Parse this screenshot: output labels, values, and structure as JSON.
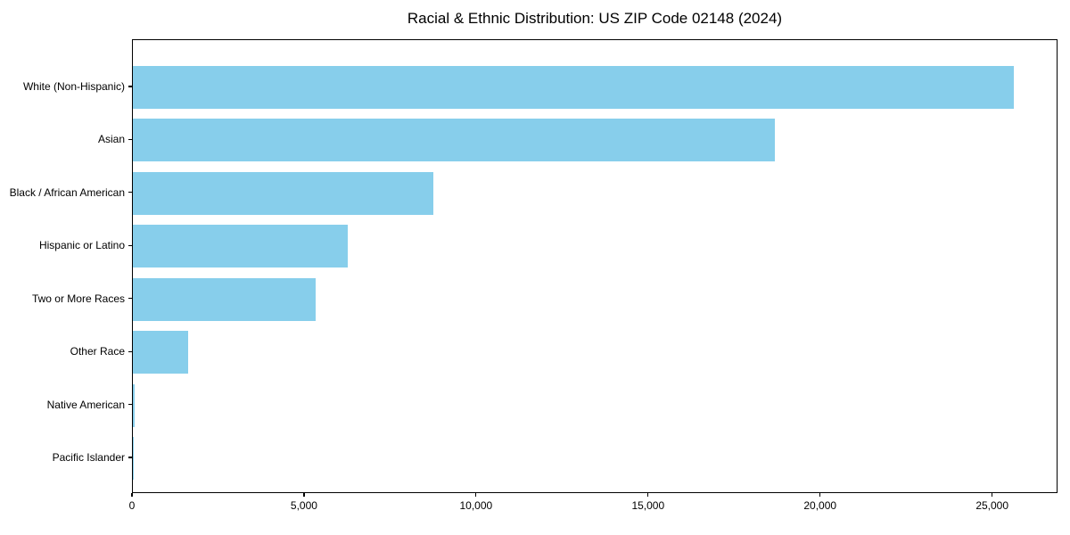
{
  "title": "Racial & Ethnic Distribution: US ZIP Code 02148 (2024)",
  "colors": {
    "bar": "#87CEEB",
    "axis": "#000000",
    "background": "#FFFFFF",
    "text": "#000000"
  },
  "chart_data": {
    "type": "bar",
    "orientation": "horizontal",
    "title": "Racial & Ethnic Distribution: US ZIP Code 02148 (2024)",
    "categories": [
      "White (Non-Hispanic)",
      "Asian",
      "Black / African American",
      "Hispanic or Latino",
      "Two or More Races",
      "Other Race",
      "Native American",
      "Pacific Islander"
    ],
    "values": [
      25600,
      18650,
      8740,
      6250,
      5320,
      1610,
      50,
      25
    ],
    "xlabel": "",
    "ylabel": "",
    "xlim": [
      0,
      26900
    ],
    "x_ticks": [
      0,
      5000,
      10000,
      15000,
      20000,
      25000
    ],
    "x_tick_labels": [
      "0",
      "5,000",
      "10,000",
      "15,000",
      "20,000",
      "25,000"
    ],
    "bar_color": "#87CEEB",
    "grid": false,
    "legend": "none"
  }
}
